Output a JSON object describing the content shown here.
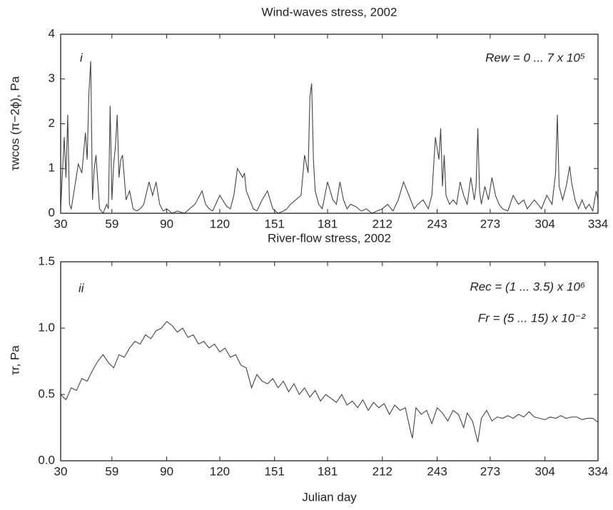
{
  "chart_data": [
    {
      "type": "line",
      "title": "Wind-waves stress, 2002",
      "ylabel": "τwcos (π−2ϕ), Pa",
      "annotations": [
        "i",
        "Rew = 0 ... 7 x 10⁵"
      ],
      "xlim": [
        30,
        334
      ],
      "xticks": [
        30,
        59,
        90,
        120,
        151,
        181,
        212,
        243,
        273,
        304,
        334
      ],
      "ylim": [
        0,
        4
      ],
      "yticks": [
        0,
        1,
        2,
        3,
        4
      ],
      "series": [
        {
          "color": "#444444",
          "x": [
            30,
            32,
            33,
            34,
            35,
            36,
            38,
            40,
            42,
            44,
            45,
            46,
            47,
            48,
            49,
            50,
            52,
            54,
            56,
            57,
            58,
            59,
            60,
            61,
            62,
            63,
            64,
            65,
            67,
            69,
            71,
            73,
            75,
            77,
            80,
            82,
            84,
            86,
            88,
            90,
            93,
            96,
            100,
            103,
            106,
            110,
            112,
            114,
            116,
            120,
            124,
            126,
            128,
            130,
            133,
            134,
            135,
            137,
            139,
            141,
            144,
            147,
            150,
            153,
            156,
            158,
            160,
            163,
            166,
            168,
            170,
            171,
            172,
            173,
            174,
            176,
            178,
            181,
            184,
            186,
            188,
            190,
            192,
            194,
            197,
            200,
            203,
            206,
            209,
            212,
            215,
            218,
            221,
            224,
            227,
            230,
            232,
            235,
            238,
            240,
            242,
            244,
            245,
            246,
            247,
            248,
            250,
            252,
            254,
            256,
            258,
            260,
            262,
            264,
            265,
            266,
            267,
            268,
            270,
            272,
            274,
            276,
            278,
            280,
            283,
            286,
            289,
            292,
            294,
            296,
            298,
            300,
            302,
            305,
            308,
            310,
            311,
            312,
            314,
            316,
            318,
            319,
            321,
            323,
            325,
            327,
            329,
            331,
            333,
            334
          ],
          "values": [
            0.1,
            1.7,
            0.8,
            2.2,
            0.2,
            0.1,
            0.6,
            1.1,
            0.9,
            1.8,
            1.2,
            2.7,
            3.4,
            0.3,
            1.0,
            1.3,
            0.1,
            0,
            0.2,
            0.1,
            2.4,
            0.3,
            1.1,
            1.5,
            2.2,
            0.8,
            1.2,
            1.3,
            0.3,
            0.5,
            0.1,
            0.05,
            0.1,
            0.2,
            0.7,
            0.4,
            0.7,
            0.2,
            0.05,
            0.1,
            0,
            0.05,
            0,
            0.1,
            0.2,
            0.5,
            0.2,
            0.1,
            0.05,
            0.4,
            0.15,
            0.1,
            0.4,
            1.0,
            0.8,
            0.9,
            0.5,
            0.3,
            0.1,
            0.05,
            0.3,
            0.5,
            0.1,
            0,
            0.05,
            0.1,
            0.2,
            0.3,
            0.4,
            1.3,
            0.9,
            2.6,
            2.9,
            1.2,
            0.5,
            0.2,
            0.1,
            0.7,
            0.3,
            0.2,
            0.7,
            0.3,
            0.1,
            0.2,
            0.15,
            0.05,
            0.1,
            0,
            0.05,
            0.1,
            0.2,
            0.05,
            0.3,
            0.7,
            0.4,
            0.1,
            0.2,
            0.3,
            0.1,
            0.4,
            1.7,
            1.2,
            1.9,
            0.6,
            1.3,
            0.4,
            0.2,
            0.3,
            0.2,
            0.7,
            0.4,
            0.2,
            0.8,
            0.3,
            0.6,
            1.9,
            0.5,
            0.2,
            0.6,
            0.3,
            0.8,
            0.4,
            0.2,
            0.1,
            0.05,
            0.4,
            0.2,
            0.3,
            0.1,
            0.2,
            0.3,
            0.2,
            0.1,
            0.4,
            0.2,
            0.9,
            2.2,
            0.6,
            0.3,
            0.6,
            1.05,
            0.7,
            0.3,
            0.1,
            0.3,
            0.1,
            0.2,
            0.05,
            0.5,
            0.3
          ]
        }
      ]
    },
    {
      "type": "line",
      "title": "River-flow stress, 2002",
      "ylabel": "τr, Pa",
      "xlabel": "Julian day",
      "annotations": [
        "ii",
        "Rec = (1 ... 3.5) x 10⁶",
        "Fr = (5 ... 15) x 10⁻²"
      ],
      "xlim": [
        30,
        334
      ],
      "xticks": [
        30,
        59,
        90,
        120,
        151,
        181,
        212,
        243,
        273,
        304,
        334
      ],
      "ylim": [
        0,
        1.5
      ],
      "yticks": [
        {
          "value": 0,
          "label": "0.0"
        },
        0.5,
        {
          "value": 1,
          "label": "1.0"
        },
        1.5
      ],
      "series": [
        {
          "color": "#444444",
          "x": [
            30,
            33,
            36,
            39,
            42,
            45,
            48,
            51,
            54,
            57,
            60,
            63,
            66,
            69,
            72,
            75,
            78,
            81,
            84,
            87,
            90,
            93,
            96,
            99,
            102,
            105,
            108,
            111,
            114,
            117,
            120,
            123,
            126,
            129,
            132,
            135,
            138,
            141,
            144,
            147,
            150,
            153,
            156,
            159,
            162,
            165,
            168,
            171,
            174,
            177,
            180,
            183,
            186,
            189,
            192,
            195,
            198,
            201,
            204,
            207,
            210,
            213,
            216,
            219,
            222,
            225,
            228,
            229,
            231,
            234,
            237,
            240,
            243,
            246,
            249,
            252,
            255,
            258,
            260,
            263,
            266,
            268,
            271,
            274,
            277,
            280,
            283,
            286,
            289,
            292,
            295,
            298,
            301,
            304,
            307,
            310,
            313,
            316,
            319,
            322,
            325,
            328,
            331,
            334
          ],
          "values": [
            0.5,
            0.46,
            0.55,
            0.53,
            0.62,
            0.6,
            0.68,
            0.75,
            0.8,
            0.74,
            0.7,
            0.8,
            0.78,
            0.85,
            0.9,
            0.88,
            0.95,
            0.92,
            0.98,
            1.0,
            1.05,
            1.02,
            0.97,
            1.0,
            0.93,
            0.95,
            0.88,
            0.9,
            0.85,
            0.88,
            0.82,
            0.85,
            0.78,
            0.8,
            0.72,
            0.7,
            0.55,
            0.65,
            0.6,
            0.58,
            0.62,
            0.55,
            0.6,
            0.52,
            0.58,
            0.5,
            0.55,
            0.48,
            0.53,
            0.45,
            0.5,
            0.47,
            0.44,
            0.5,
            0.42,
            0.45,
            0.4,
            0.46,
            0.38,
            0.44,
            0.4,
            0.43,
            0.35,
            0.42,
            0.38,
            0.4,
            0.22,
            0.17,
            0.4,
            0.35,
            0.38,
            0.28,
            0.4,
            0.36,
            0.3,
            0.38,
            0.35,
            0.25,
            0.36,
            0.3,
            0.14,
            0.32,
            0.38,
            0.3,
            0.33,
            0.32,
            0.34,
            0.32,
            0.35,
            0.33,
            0.37,
            0.33,
            0.32,
            0.31,
            0.33,
            0.32,
            0.34,
            0.32,
            0.33,
            0.33,
            0.31,
            0.32,
            0.32,
            0.29
          ]
        }
      ]
    }
  ]
}
